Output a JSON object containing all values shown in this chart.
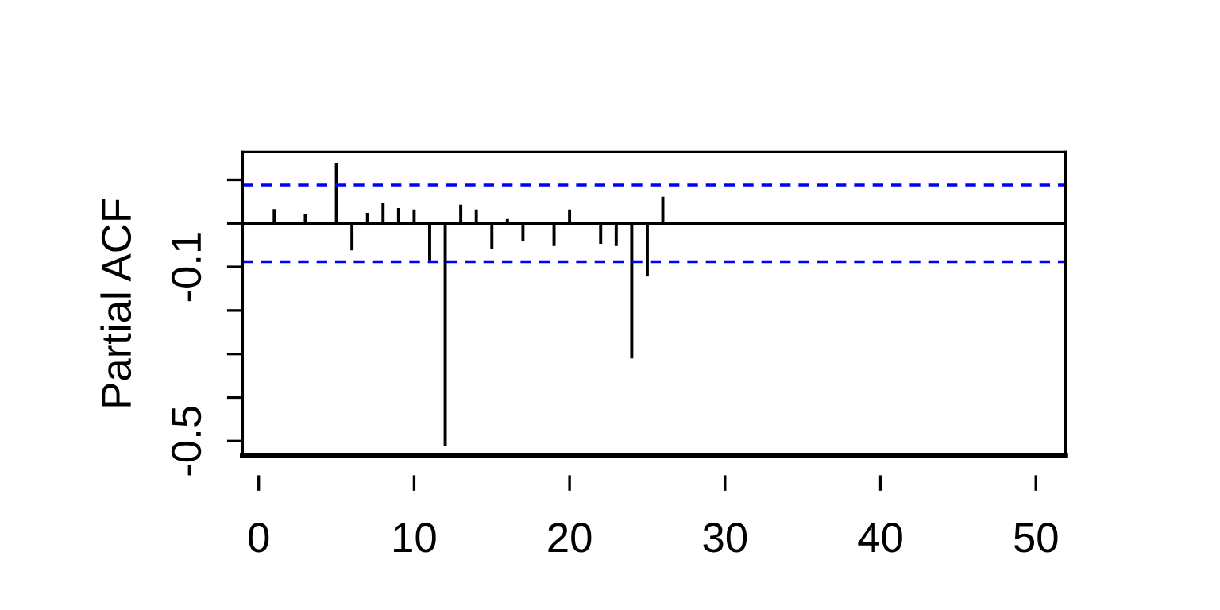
{
  "chart_data": {
    "type": "bar",
    "ylabel": "Partial ACF",
    "x": [
      1,
      3,
      5,
      6,
      7,
      8,
      9,
      10,
      11,
      12,
      13,
      14,
      15,
      16,
      17,
      19,
      20,
      22,
      23,
      24,
      25,
      26
    ],
    "values": [
      0.033,
      0.021,
      0.139,
      -0.062,
      0.024,
      0.046,
      0.035,
      0.032,
      -0.085,
      -0.511,
      0.043,
      0.032,
      -0.058,
      0.01,
      -0.04,
      -0.052,
      0.032,
      -0.047,
      -0.052,
      -0.31,
      -0.122,
      0.061
    ],
    "color": "#000000",
    "xlim": [
      -1.04,
      51.9
    ],
    "xticks": [
      0,
      10,
      20,
      30,
      40,
      50
    ],
    "ylim": [
      -0.533,
      0.164
    ],
    "yticks": [
      {
        "value": 0.1,
        "label": null
      },
      {
        "value": 0,
        "label": null
      },
      -0.1,
      {
        "value": -0.2,
        "label": null
      },
      {
        "value": -0.3,
        "label": null
      },
      {
        "value": -0.4,
        "label": null
      },
      -0.5
    ],
    "ref_lines": [
      {
        "axis": "y",
        "value": 0.088,
        "color": "#0000ff",
        "line_style": "dashed"
      },
      {
        "axis": "y",
        "value": -0.088,
        "color": "#0000ff",
        "line_style": "dashed"
      },
      {
        "axis": "y",
        "value": 0,
        "color": "#000000",
        "line_style": "solid"
      }
    ],
    "grid": false,
    "legend": false
  }
}
